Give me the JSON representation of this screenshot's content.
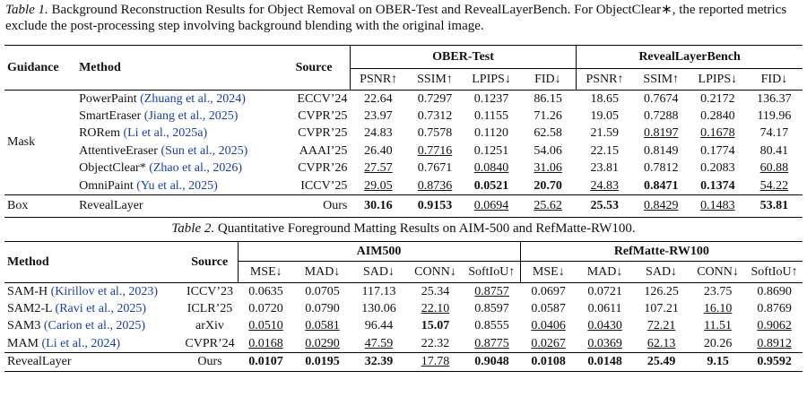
{
  "table1": {
    "caption_label": "Table 1.",
    "caption": "Background Reconstruction Results for Object Removal on OBER-Test and RevealLayerBench. For ObjectClear∗, the reported metrics exclude the post-processing step involving background blending with the original image.",
    "columns": [
      "Guidance",
      "Method",
      "Source"
    ],
    "groups": [
      "OBER-Test",
      "RevealLayerBench"
    ],
    "metrics": [
      "PSNR↑",
      "SSIM↑",
      "LPIPS↓",
      "FID↓",
      "PSNR↑",
      "SSIM↑",
      "LPIPS↓",
      "FID↓"
    ],
    "sections": [
      {
        "guidance": "Mask",
        "rows": [
          {
            "method": "PowerPaint",
            "cite": "(Zhuang et al., 2024)",
            "source": "ECCV’24",
            "values": [
              "22.64",
              "0.7297",
              "0.1237",
              "86.15",
              "18.65",
              "0.7674",
              "0.2172",
              "136.37"
            ]
          },
          {
            "method": "SmartEraser",
            "cite": "(Jiang et al., 2025)",
            "source": "CVPR’25",
            "values": [
              "23.97",
              "0.7312",
              "0.1155",
              "71.26",
              "19.05",
              "0.7288",
              "0.2840",
              "119.96"
            ]
          },
          {
            "method": "RORem",
            "cite": "(Li et al., 2025a)",
            "source": "CVPR’25",
            "values": [
              "24.83",
              "0.7578",
              "0.1120",
              "62.58",
              "21.59",
              "0.8197",
              "0.1678",
              "74.17"
            ],
            "underline": [
              5,
              6
            ]
          },
          {
            "method": "AttentiveEraser",
            "cite": "(Sun et al., 2025)",
            "source": "AAAI’25",
            "values": [
              "26.40",
              "0.7716",
              "0.1251",
              "54.06",
              "22.15",
              "0.8149",
              "0.1774",
              "80.41"
            ],
            "underline": [
              1
            ]
          },
          {
            "method": "ObjectClear*",
            "cite": "(Zhao et al., 2026)",
            "source": "CVPR’26",
            "values": [
              "27.57",
              "0.7671",
              "0.0840",
              "31.06",
              "23.81",
              "0.7812",
              "0.2083",
              "60.88"
            ],
            "underline": [
              0,
              2,
              3,
              7
            ]
          },
          {
            "method": "OmniPaint",
            "cite": "(Yu et al., 2025)",
            "source": "ICCV’25",
            "values": [
              "29.05",
              "0.8736",
              "0.0521",
              "20.70",
              "24.83",
              "0.8471",
              "0.1374",
              "54.22"
            ],
            "underline": [
              0,
              1,
              4,
              7
            ],
            "bold": [
              2,
              3,
              5,
              6
            ]
          }
        ]
      },
      {
        "guidance": "Box",
        "rows": [
          {
            "method": "RevealLayer",
            "source": "Ours",
            "values": [
              "30.16",
              "0.9153",
              "0.0694",
              "25.62",
              "25.53",
              "0.8429",
              "0.1483",
              "53.81"
            ],
            "bold": [
              0,
              1,
              4,
              7
            ],
            "underline": [
              2,
              3,
              5,
              6
            ]
          }
        ]
      }
    ]
  },
  "table2": {
    "caption_label": "Table 2.",
    "caption": "Quantitative Foreground Matting Results on AIM-500 and RefMatte-RW100.",
    "columns": [
      "Method",
      "Source"
    ],
    "groups": [
      "AIM500",
      "RefMatte-RW100"
    ],
    "metrics": [
      "MSE↓",
      "MAD↓",
      "SAD↓",
      "CONN↓",
      "SoftIoU↑",
      "MSE↓",
      "MAD↓",
      "SAD↓",
      "CONN↓",
      "SoftIoU↑"
    ],
    "rows": [
      {
        "method": "SAM-H",
        "cite": "(Kirillov et al., 2023)",
        "source": "ICCV’23",
        "values": [
          "0.0635",
          "0.0705",
          "117.13",
          "25.34",
          "0.8757",
          "0.0697",
          "0.0721",
          "126.25",
          "23.75",
          "0.8690"
        ],
        "underline": [
          4
        ]
      },
      {
        "method": "SAM2-L",
        "cite": "(Ravi et al., 2025)",
        "source": "ICLR’25",
        "values": [
          "0.0720",
          "0.0790",
          "130.06",
          "22.10",
          "0.8597",
          "0.0587",
          "0.0611",
          "107.21",
          "16.10",
          "0.8769"
        ],
        "underline": [
          3,
          8
        ]
      },
      {
        "method": "SAM3",
        "cite": "(Carion et al., 2025)",
        "source": "arXiv",
        "values": [
          "0.0510",
          "0.0581",
          "96.44",
          "15.07",
          "0.8555",
          "0.0406",
          "0.0430",
          "72.21",
          "11.51",
          "0.9062"
        ],
        "underline": [
          0,
          1,
          5,
          6,
          7,
          8,
          9
        ],
        "bold": [
          3
        ]
      },
      {
        "method": "MAM",
        "cite": "(Li et al., 2024)",
        "source": "CVPR’24",
        "values": [
          "0.0168",
          "0.0290",
          "47.59",
          "22.32",
          "0.8775",
          "0.0267",
          "0.0369",
          "62.13",
          "20.26",
          "0.8912"
        ],
        "underline": [
          0,
          1,
          2,
          4,
          5,
          6,
          7,
          9
        ]
      },
      {
        "method": "RevealLayer",
        "source": "Ours",
        "values": [
          "0.0107",
          "0.0195",
          "32.39",
          "17.78",
          "0.9048",
          "0.0108",
          "0.0148",
          "25.49",
          "9.15",
          "0.9592"
        ],
        "bold": [
          0,
          1,
          2,
          4,
          5,
          6,
          7,
          8,
          9
        ],
        "underline": [
          3
        ]
      }
    ]
  }
}
